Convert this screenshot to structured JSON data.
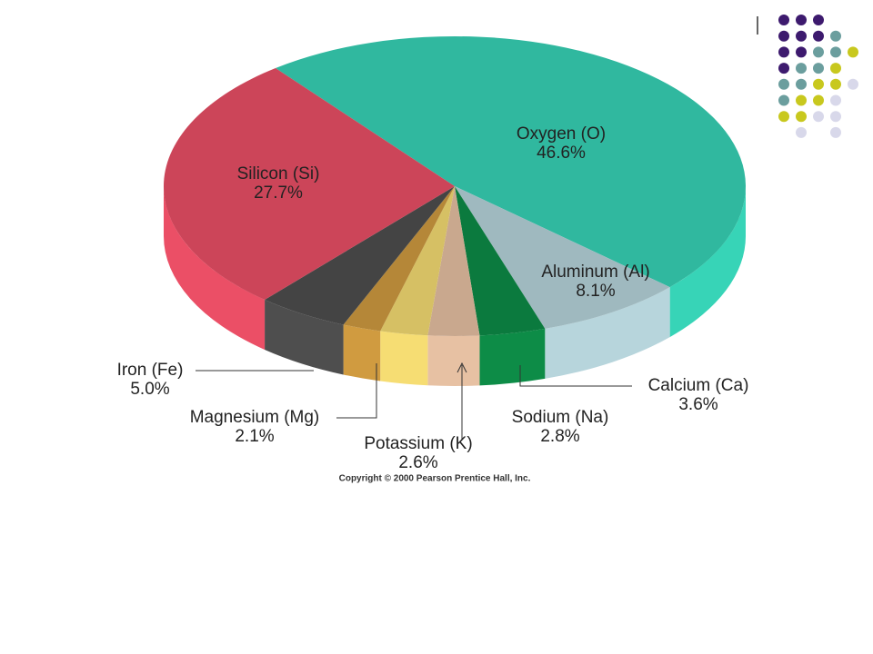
{
  "chart_data": {
    "type": "pie",
    "categories": [
      "Oxygen (O)",
      "Aluminum (Al)",
      "Calcium (Ca)",
      "Sodium (Na)",
      "Potassium (K)",
      "Magnesium (Mg)",
      "Iron (Fe)",
      "Silicon (Si)"
    ],
    "values": [
      46.6,
      8.1,
      3.6,
      2.8,
      2.6,
      2.1,
      5.0,
      27.7
    ],
    "value_labels": [
      "46.6%",
      "8.1%",
      "3.6%",
      "2.8%",
      "2.6%",
      "2.1%",
      "5.0%",
      "27.7%"
    ],
    "colors": [
      "#30b89f",
      "#9fb9bf",
      "#0b7a3e",
      "#c9a88e",
      "#d6c064",
      "#b58738",
      "#444444",
      "#cc4559"
    ],
    "footnote": "Copyright © 2000 Pearson Prentice Hall, Inc."
  }
}
